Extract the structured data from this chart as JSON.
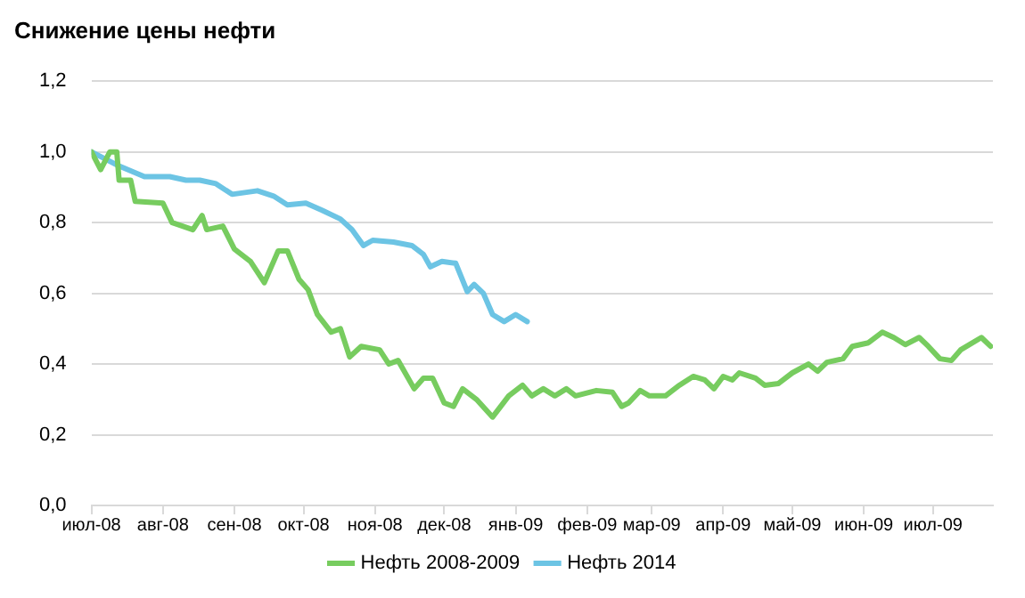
{
  "chart_data": {
    "type": "line",
    "title": "Снижение цены нефти",
    "xlim": [
      "2008-07-01",
      "2009-07-27"
    ],
    "xticks": [
      {
        "value": "2008-07",
        "label": "июл-08"
      },
      {
        "value": "2008-08",
        "label": "авг-08"
      },
      {
        "value": "2008-09",
        "label": "сен-08"
      },
      {
        "value": "2008-10",
        "label": "окт-08"
      },
      {
        "value": "2008-11",
        "label": "ноя-08"
      },
      {
        "value": "2008-12",
        "label": "дек-08"
      },
      {
        "value": "2009-01",
        "label": "янв-09"
      },
      {
        "value": "2009-02",
        "label": "фев-09"
      },
      {
        "value": "2009-03",
        "label": "мар-09"
      },
      {
        "value": "2009-04",
        "label": "апр-09"
      },
      {
        "value": "2009-05",
        "label": "май-09"
      },
      {
        "value": "2009-06",
        "label": "июн-09"
      },
      {
        "value": "2009-07",
        "label": "июл-09"
      }
    ],
    "ylim": [
      0,
      1.2
    ],
    "yticks": [
      {
        "value": 0,
        "label": "0,0"
      },
      {
        "value": 0.2,
        "label": "0,2"
      },
      {
        "value": 0.4,
        "label": "0,4"
      },
      {
        "value": 0.6,
        "label": "0,6"
      },
      {
        "value": 0.8,
        "label": "0,8"
      },
      {
        "value": 1,
        "label": "1,0"
      },
      {
        "value": 1.2,
        "label": "1,2"
      }
    ],
    "grid": "y",
    "legend": "bottom",
    "marker": "none",
    "line_style": "solid",
    "series": [
      {
        "name": "Нефть 2008-2009",
        "color": "#77cc5f",
        "x": [
          "2008-07-01",
          "2008-07-05",
          "2008-07-09",
          "2008-07-12",
          "2008-07-13",
          "2008-07-18",
          "2008-07-20",
          "2008-08-01",
          "2008-08-05",
          "2008-08-14",
          "2008-08-18",
          "2008-08-20",
          "2008-08-27",
          "2008-09-01",
          "2008-09-08",
          "2008-09-14",
          "2008-09-18",
          "2008-09-20",
          "2008-09-24",
          "2008-09-29",
          "2008-10-03",
          "2008-10-07",
          "2008-10-13",
          "2008-10-17",
          "2008-10-21",
          "2008-10-26",
          "2008-11-03",
          "2008-11-07",
          "2008-11-11",
          "2008-11-18",
          "2008-11-22",
          "2008-11-26",
          "2008-12-01",
          "2008-12-05",
          "2008-12-09",
          "2008-12-15",
          "2008-12-22",
          "2008-12-29",
          "2009-01-04",
          "2009-01-08",
          "2009-01-13",
          "2009-01-18",
          "2009-01-23",
          "2009-01-27",
          "2009-02-05",
          "2009-02-12",
          "2009-02-16",
          "2009-02-19",
          "2009-02-24",
          "2009-02-28",
          "2009-03-07",
          "2009-03-13",
          "2009-03-19",
          "2009-03-24",
          "2009-03-28",
          "2009-04-01",
          "2009-04-05",
          "2009-04-08",
          "2009-04-15",
          "2009-04-19",
          "2009-04-25",
          "2009-05-01",
          "2009-05-08",
          "2009-05-12",
          "2009-05-16",
          "2009-05-23",
          "2009-05-27",
          "2009-06-03",
          "2009-06-09",
          "2009-06-14",
          "2009-06-19",
          "2009-06-25",
          "2009-06-29",
          "2009-07-04",
          "2009-07-09",
          "2009-07-13",
          "2009-07-22",
          "2009-07-26"
        ],
        "values": [
          1.0,
          0.95,
          1.0,
          1.0,
          0.92,
          0.92,
          0.86,
          0.855,
          0.8,
          0.78,
          0.82,
          0.78,
          0.79,
          0.725,
          0.69,
          0.63,
          0.69,
          0.72,
          0.72,
          0.64,
          0.61,
          0.54,
          0.49,
          0.5,
          0.42,
          0.45,
          0.44,
          0.4,
          0.41,
          0.33,
          0.36,
          0.36,
          0.29,
          0.28,
          0.33,
          0.3,
          0.25,
          0.31,
          0.34,
          0.31,
          0.33,
          0.31,
          0.33,
          0.31,
          0.325,
          0.32,
          0.28,
          0.29,
          0.325,
          0.31,
          0.31,
          0.34,
          0.365,
          0.355,
          0.33,
          0.365,
          0.355,
          0.375,
          0.36,
          0.34,
          0.345,
          0.375,
          0.4,
          0.38,
          0.405,
          0.415,
          0.45,
          0.46,
          0.49,
          0.475,
          0.455,
          0.475,
          0.45,
          0.415,
          0.41,
          0.44,
          0.475,
          0.45
        ]
      },
      {
        "name": "Нефть 2014",
        "color": "#6cc4e4",
        "x": [
          "2008-07-01",
          "2008-07-13",
          "2008-07-24",
          "2008-08-04",
          "2008-08-11",
          "2008-08-17",
          "2008-08-24",
          "2008-08-31",
          "2008-09-11",
          "2008-09-18",
          "2008-09-24",
          "2008-10-02",
          "2008-10-09",
          "2008-10-17",
          "2008-10-22",
          "2008-10-27",
          "2008-10-31",
          "2008-11-09",
          "2008-11-17",
          "2008-11-22",
          "2008-11-25",
          "2008-11-30",
          "2008-12-06",
          "2008-12-11",
          "2008-12-14",
          "2008-12-18",
          "2008-12-22",
          "2008-12-27",
          "2009-01-01",
          "2009-01-06"
        ],
        "values": [
          1.0,
          0.96,
          0.93,
          0.93,
          0.92,
          0.92,
          0.91,
          0.88,
          0.89,
          0.875,
          0.85,
          0.855,
          0.835,
          0.81,
          0.78,
          0.735,
          0.75,
          0.745,
          0.735,
          0.71,
          0.675,
          0.69,
          0.685,
          0.605,
          0.625,
          0.6,
          0.54,
          0.52,
          0.54,
          0.52
        ]
      }
    ]
  }
}
